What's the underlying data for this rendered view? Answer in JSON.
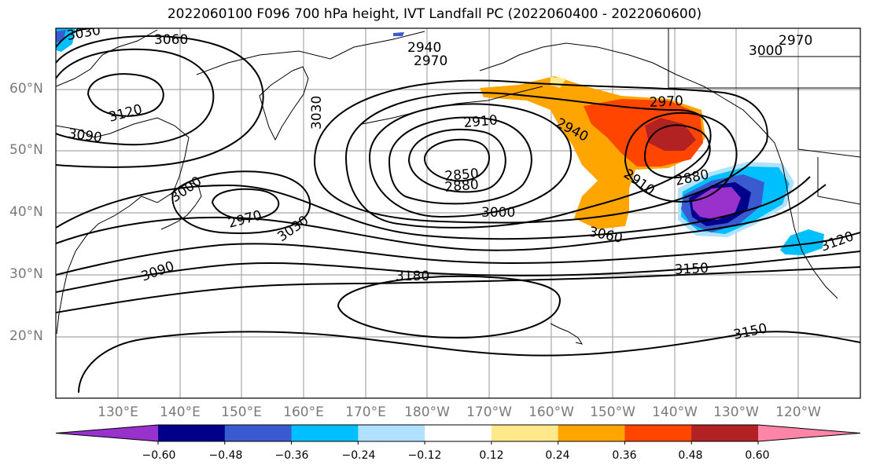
{
  "title": "2022060100 F096 700 hPa height, IVT Landfall PC (2022060400 - 2022060600)",
  "lat_labels": [
    "60°N",
    "50°N",
    "40°N",
    "30°N",
    "20°N"
  ],
  "lon_labels": [
    "130°E",
    "140°E",
    "150°E",
    "160°E",
    "170°E",
    "180°W",
    "170°W",
    "160°W",
    "150°W",
    "140°W",
    "130°W",
    "120°W"
  ],
  "contour_labels": {
    "c3030_nw": "3030",
    "c3060_n": "3060",
    "c2940_n": "2940",
    "c2970_n": "2970",
    "c2970_ne": "2970",
    "c3000_ne": "3000",
    "c3120_w": "3120",
    "c3090_w": "3090",
    "c3030_kam": "3030",
    "c2910": "2910",
    "c2940_gulf": "2940",
    "c2970_gulf": "2970",
    "c3000_jp": "3000",
    "c2970_jp": "2970",
    "c3030_mid": "3030",
    "c2850": "2850",
    "c2880": "2880",
    "c2910_se": "2910",
    "c2880_se": "2880",
    "c3000_mid": "3000",
    "c3060_se": "3060",
    "c3120_e": "3120",
    "c3090_sw": "3090",
    "c3180": "3180",
    "c3150_e": "3150",
    "c3150_s": "3150"
  },
  "colorbar": {
    "ticks": [
      "−0.60",
      "−0.48",
      "−0.36",
      "−0.24",
      "−0.12",
      "0.12",
      "0.24",
      "0.36",
      "0.48",
      "0.60"
    ],
    "colors": [
      "#9932cc",
      "#00008b",
      "#3a5bd0",
      "#00bfff",
      "#b0e2ff",
      "#ffffff",
      "#ffe98a",
      "#ffa500",
      "#ff4500",
      "#b22222",
      "#ff85a8"
    ]
  }
}
